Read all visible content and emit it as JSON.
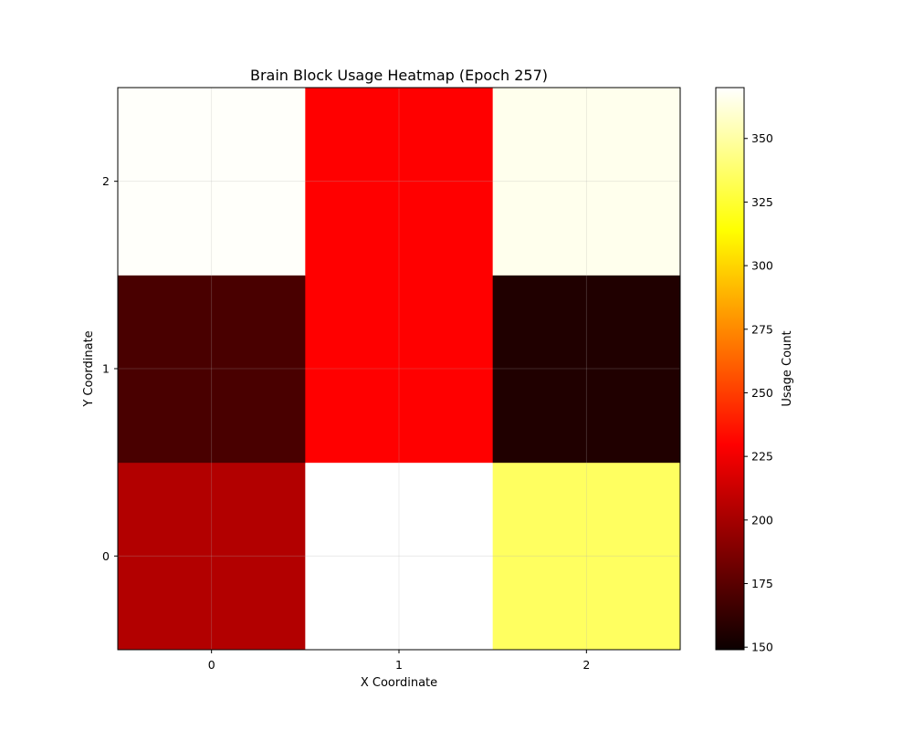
{
  "chart_data": {
    "type": "heatmap",
    "title": "Brain Block Usage Heatmap (Epoch 257)",
    "xlabel": "X Coordinate",
    "ylabel": "Y Coordinate",
    "x": [
      0,
      1,
      2
    ],
    "y": [
      0,
      1,
      2
    ],
    "x_tick_labels": [
      "0",
      "1",
      "2"
    ],
    "y_tick_labels": [
      "0",
      "1",
      "2"
    ],
    "values": [
      [
        196,
        370,
        335
      ],
      [
        163,
        225,
        150
      ],
      [
        369,
        225,
        366
      ]
    ],
    "colormap": "hot",
    "grid": true,
    "colorbar": {
      "label": "Usage Count",
      "range": [
        149,
        370
      ],
      "ticks": [
        150,
        175,
        200,
        225,
        250,
        275,
        300,
        325,
        350
      ],
      "tick_labels": [
        "150",
        "175",
        "200",
        "225",
        "250",
        "275",
        "300",
        "325",
        "350"
      ],
      "placement": "right"
    }
  }
}
